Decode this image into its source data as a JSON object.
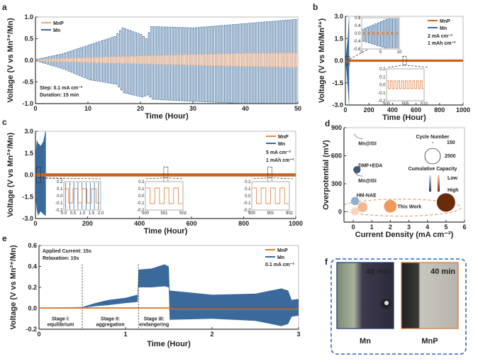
{
  "colors": {
    "mn": "#3a6a9c",
    "mnp": "#e08a50",
    "mnp_dark": "#c8641e",
    "frame": "#4a7cc0"
  },
  "chart_data": [
    {
      "panel": "a",
      "type": "line",
      "xlabel": "Time (Hour)",
      "ylabel": "Voltage (V vs Mn²⁺/Mn)",
      "xlim": [
        0,
        50
      ],
      "ylim": [
        -1,
        1
      ],
      "xticks": [
        "0",
        "10",
        "20",
        "30",
        "40",
        "50"
      ],
      "yticks": [
        "-1.0",
        "-0.5",
        "0.0",
        "0.5",
        "1.0"
      ],
      "legend": [
        "MnP",
        "Mn"
      ],
      "legend_placement": "top-left",
      "annotations": [
        "Step: 0.1 mA cm⁻²",
        "Duration: 15 min"
      ],
      "series": [
        {
          "name": "Mn",
          "t": [
            0,
            5,
            10,
            15,
            16.5,
            20,
            21,
            22,
            30,
            40,
            50
          ],
          "upper": [
            0.02,
            0.15,
            0.35,
            0.55,
            0.75,
            0.6,
            0.5,
            0.78,
            0.75,
            0.85,
            0.95
          ],
          "lower": [
            -0.02,
            -0.2,
            -0.45,
            -0.55,
            -0.75,
            -0.85,
            -0.8,
            -0.9,
            -0.95,
            -1.0,
            -1.0
          ]
        },
        {
          "name": "MnP",
          "t": [
            0,
            10,
            20,
            30,
            40,
            50
          ],
          "upper": [
            0.01,
            0.06,
            0.1,
            0.13,
            0.16,
            0.17
          ],
          "lower": [
            -0.01,
            -0.05,
            -0.08,
            -0.11,
            -0.14,
            -0.16
          ]
        }
      ]
    },
    {
      "panel": "b",
      "type": "line",
      "xlabel": "Time (Hour)",
      "ylabel": "Voltage (V vs Mn/Mn²⁺)",
      "xlim": [
        0,
        1000
      ],
      "ylim": [
        -3,
        3
      ],
      "xticks": [
        "0",
        "200",
        "400",
        "600",
        "800",
        "1000"
      ],
      "yticks": [
        "-3.0",
        "-1.5",
        "0.0",
        "1.5",
        "3.0"
      ],
      "legend": [
        "MnP",
        "Mn"
      ],
      "legend_placement": "top-right",
      "annotations": [
        "2 mA cm⁻²",
        "1 mAh cm⁻²"
      ],
      "series": [
        {
          "name": "Mn",
          "t": [
            0,
            10,
            20,
            30,
            32
          ],
          "upper": [
            0.05,
            0.8,
            1.5,
            3,
            3
          ],
          "lower": [
            -0.05,
            -0.8,
            -1.8,
            -3,
            -3
          ]
        },
        {
          "name": "MnP",
          "t": [
            0,
            1000
          ],
          "upper": [
            0.08,
            0.08
          ],
          "lower": [
            -0.08,
            -0.08
          ]
        }
      ],
      "insets": [
        {
          "xlim": [
            0,
            10
          ],
          "ylim": [
            -0.8,
            0.8
          ],
          "xticks": [
            "0",
            "5",
            "10"
          ],
          "yticks": [
            "-0.8",
            "-0.4",
            "0.0",
            "0.4",
            "0.8"
          ],
          "mn_amp": [
            0.4,
            1.0
          ],
          "mnp_amp": 0.05
        },
        {
          "xlim": [
            500,
            510
          ],
          "ylim": [
            -0.2,
            0.2
          ],
          "xticks": [
            "500",
            "505",
            "510"
          ],
          "yticks": [
            "-0.2",
            "-0.1",
            "0.0",
            "0.1",
            "0.2"
          ],
          "mnp_amp": 0.05
        }
      ]
    },
    {
      "panel": "c",
      "type": "line",
      "xlabel": "Time (Hour)",
      "ylabel": "Voltage (V vs Mn²⁺/Mn)",
      "xlim": [
        0,
        1000
      ],
      "ylim": [
        -3,
        3
      ],
      "xticks": [
        "0",
        "200",
        "400",
        "600",
        "800",
        "1000"
      ],
      "yticks": [
        "-3.0",
        "-1.5",
        "0.0",
        "1.5",
        "3.0"
      ],
      "legend": [
        "MnP",
        "Mn"
      ],
      "legend_placement": "top-right",
      "annotations": [
        "5 mA cm⁻²",
        "1 mAh cm⁻²"
      ],
      "series": [
        {
          "name": "Mn",
          "t": [
            0,
            5,
            10,
            20,
            30,
            38,
            40
          ],
          "upper": [
            1.2,
            2.4,
            2.2,
            2.0,
            2.3,
            3,
            3
          ],
          "lower": [
            -1.5,
            -2.4,
            -2.8,
            -2.5,
            -2.7,
            -2.8,
            -2.8
          ]
        },
        {
          "name": "MnP",
          "t": [
            0,
            1000
          ],
          "upper": [
            0.11,
            0.11
          ],
          "lower": [
            -0.11,
            -0.11
          ]
        }
      ],
      "insets": [
        {
          "xlim": [
            0,
            2
          ],
          "ylim": [
            -0.2,
            0.2
          ],
          "xticks": [
            "0.0",
            "0.5",
            "1.0",
            "1.5",
            "2.0"
          ],
          "yticks": [
            "-0.2",
            "-0.1",
            "0.0",
            "0.1",
            "0.2"
          ],
          "mnp_amp": 0.1,
          "mn_lines": true
        },
        {
          "xlim": [
            500,
            502
          ],
          "ylim": [
            -0.2,
            0.2
          ],
          "xticks": [
            "500",
            "501",
            "502"
          ],
          "yticks": [
            "-0.2",
            "-0.1",
            "0.0",
            "0.1",
            "0.2"
          ],
          "mnp_amp": 0.11
        },
        {
          "xlim": [
            900,
            902
          ],
          "ylim": [
            -0.2,
            0.2
          ],
          "xticks": [
            "900",
            "901",
            "902"
          ],
          "yticks": [
            "-0.2",
            "-0.1",
            "0.0",
            "0.1",
            "0.2"
          ],
          "mnp_amp": 0.11
        }
      ]
    },
    {
      "panel": "d",
      "type": "scatter",
      "xlabel": "Current Density (mA cm⁻²)",
      "ylabel": "Overpotential (mV)",
      "xlim": [
        -0.5,
        6
      ],
      "ylim": [
        -110,
        900
      ],
      "xticks": [
        "0",
        "1",
        "2",
        "3",
        "4",
        "5",
        "6"
      ],
      "yticks": [
        "0",
        "300",
        "600",
        "900"
      ],
      "points": [
        {
          "label": "Mn@ISI",
          "x": 0.2,
          "y": 790,
          "cycles": 20,
          "color": "#8a9aaa"
        },
        {
          "label": "DMF+EDA",
          "x": 0.2,
          "y": 450,
          "cycles": 200,
          "color": "#3d5a78"
        },
        {
          "label": "Mn@ISI",
          "x": 0.2,
          "y": 390,
          "cycles": 20,
          "color": "#8a9aaa"
        },
        {
          "label": "HM-NAE",
          "x": 0.1,
          "y": 115,
          "cycles": 300,
          "color": "#8fb0d0"
        },
        {
          "label": "",
          "x": 0.1,
          "y": 5,
          "cycles": 300,
          "color": "#f7d7c2"
        },
        {
          "label": "",
          "x": 0.5,
          "y": 50,
          "cycles": 500,
          "color": "#f3b88f"
        },
        {
          "label": "This Work",
          "x": 2,
          "y": 60,
          "cycles": 1000,
          "color": "#ee9a5c"
        },
        {
          "label": "",
          "x": 5,
          "y": 100,
          "cycles": 2500,
          "color": "#6b2a0c"
        }
      ],
      "legend": {
        "size_title": "Cycle Number",
        "size_small": "150",
        "size_large": "2500",
        "color_title": "Cumulative Capacity",
        "low": "Low",
        "high": "High"
      }
    },
    {
      "panel": "e",
      "type": "area",
      "xlabel": "Time (Hour)",
      "ylabel": "Voltage (V vs Mn²⁺/Mn)",
      "xlim": [
        0,
        3
      ],
      "ylim": [
        -0.2,
        0.6
      ],
      "xticks": [
        "0",
        "1",
        "2",
        "3"
      ],
      "yticks": [
        "-0.2",
        "0.0",
        "0.2",
        "0.4",
        "0.6"
      ],
      "legend": [
        "MnP",
        "Mn"
      ],
      "legend_placement": "top-right",
      "annotations": [
        "Applied Current: 15s",
        "Relaxation: 10s",
        "0.1 mA cm⁻²"
      ],
      "stage_dividers": [
        0.5,
        1.15
      ],
      "stages": [
        [
          "Stage I:",
          "equilibrium"
        ],
        [
          "Stage II:",
          "aggregation"
        ],
        [
          "Stage III:",
          "endangering"
        ]
      ],
      "series": [
        {
          "name": "Mn",
          "t": [
            0,
            0.5,
            0.65,
            0.8,
            1.0,
            1.14,
            1.15,
            1.3,
            1.45,
            1.5,
            1.51,
            2.0,
            2.5,
            2.8,
            2.88,
            2.92,
            3.0
          ],
          "upper": [
            0.005,
            0.012,
            0.05,
            0.08,
            0.1,
            0.13,
            0.37,
            0.38,
            0.42,
            0.4,
            0.17,
            0.13,
            0.14,
            0.19,
            0.17,
            0.08,
            0.09
          ],
          "lower": [
            0.0,
            0.005,
            0.02,
            0.03,
            0.05,
            0.06,
            0.2,
            0.2,
            0.21,
            0.2,
            -0.11,
            -0.1,
            -0.12,
            -0.17,
            -0.15,
            -0.08,
            -0.07
          ]
        },
        {
          "name": "MnP",
          "t": [
            0,
            1.5,
            1.52,
            3.0
          ],
          "upper": [
            0.005,
            0.005,
            -0.005,
            -0.005
          ],
          "lower": [
            0.0,
            0.0,
            -0.012,
            -0.012
          ]
        }
      ]
    }
  ],
  "panel_f": {
    "label": "f",
    "images": [
      {
        "time": "40 min",
        "caption": "Mn"
      },
      {
        "time": "40 min",
        "caption": "MnP"
      }
    ]
  }
}
